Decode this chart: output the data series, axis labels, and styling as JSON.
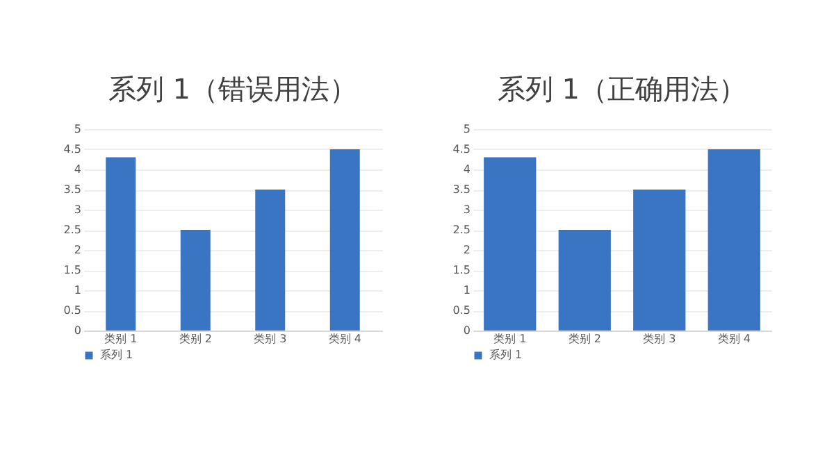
{
  "chart_data": [
    {
      "type": "bar",
      "title": "系列 1（错误用法）",
      "categories": [
        "类别 1",
        "类别 2",
        "类别 3",
        "类别 4"
      ],
      "series": [
        {
          "name": "系列 1",
          "color": "#3a75c4",
          "values": [
            4.3,
            2.5,
            3.5,
            4.5
          ]
        }
      ],
      "ylim": [
        0,
        5
      ],
      "yticks": [
        0,
        0.5,
        1,
        1.5,
        2,
        2.5,
        3,
        3.5,
        4,
        4.5,
        5
      ],
      "grid": "y",
      "legend": "bottom"
    },
    {
      "type": "bar",
      "title": "系列 1（正确用法）",
      "categories": [
        "类别 1",
        "类别 2",
        "类别 3",
        "类别 4"
      ],
      "series": [
        {
          "name": "系列 1",
          "color": "#3a75c4",
          "values": [
            4.3,
            2.5,
            3.5,
            4.5
          ]
        }
      ],
      "ylim": [
        0,
        5
      ],
      "yticks": [
        0,
        0.5,
        1,
        1.5,
        2,
        2.5,
        3,
        3.5,
        4,
        4.5,
        5
      ],
      "grid": "y",
      "legend": "bottom"
    }
  ]
}
